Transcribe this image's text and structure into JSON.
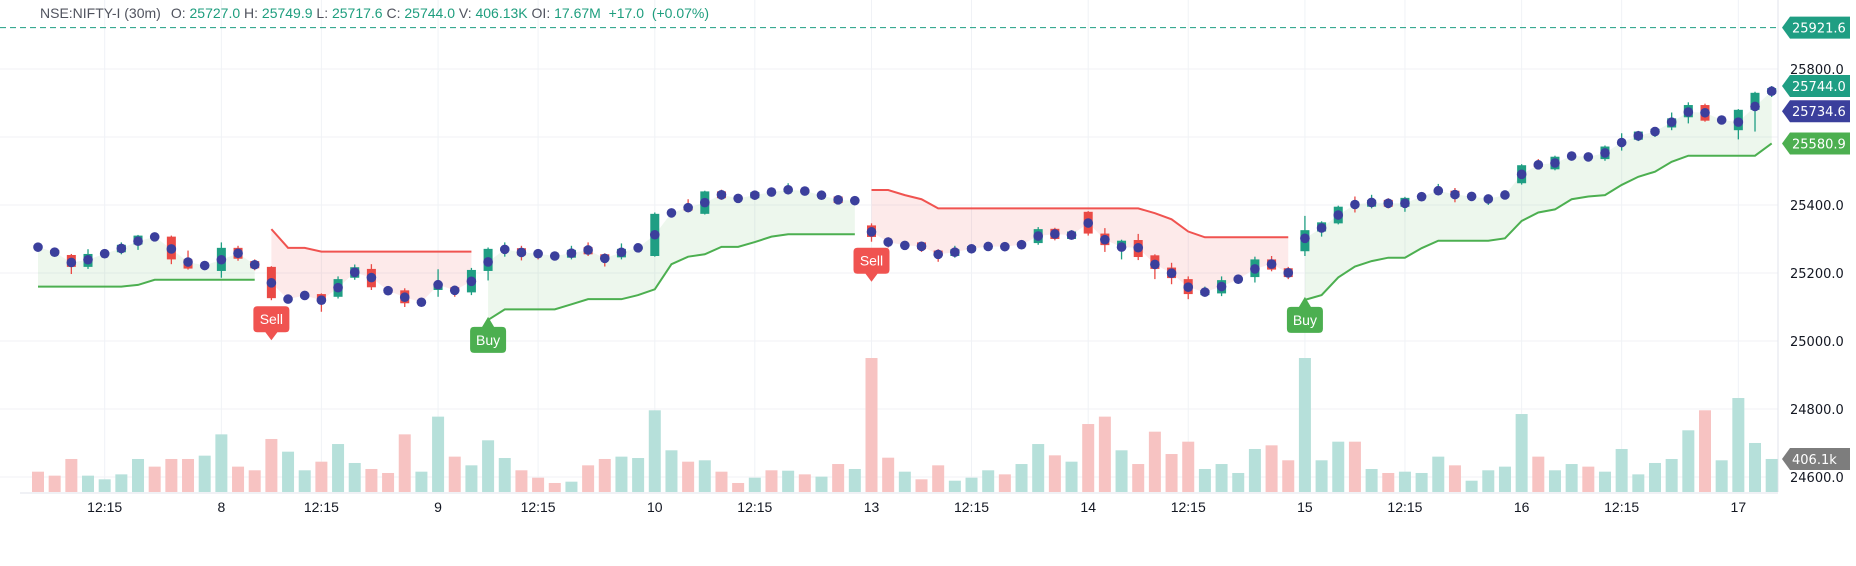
{
  "header": {
    "symbol": "NSE:NIFTY-I (30m)",
    "open_label": "O:",
    "open": "25727.0",
    "high_label": "H:",
    "high": "25749.9",
    "low_label": "L:",
    "low": "25717.6",
    "close_label": "C:",
    "close": "25744.0",
    "volume_label": "V:",
    "volume": "406.13K",
    "oi_label": "OI:",
    "oi": "17.67M",
    "change": "+17.0",
    "change_pct": "(+0.07%)"
  },
  "price_tags": [
    {
      "name": "dashed-level",
      "text": "25921.6",
      "value": 25921.6,
      "color": "#1f9e83"
    },
    {
      "name": "last-close",
      "text": "25744.0",
      "value": 25744.0,
      "color": "#1f9e83"
    },
    {
      "name": "ohlc4",
      "text": "25734.6",
      "value": 25734.6,
      "color": "#3b3f9c"
    },
    {
      "name": "trailing-stop",
      "text": "25580.9",
      "value": 25580.9,
      "color": "#4caf50"
    },
    {
      "name": "volume",
      "text": "406.1k",
      "volume": 406.13,
      "color": "#7d7d7d"
    }
  ],
  "chart_data": {
    "type": "candlestick",
    "interval": "30m",
    "colors": {
      "up": "#1f9e83",
      "down": "#ea4a45",
      "dot": "#3b3f9c",
      "trend_up": "#4caf50",
      "trend_down": "#f05350",
      "vol_up": "#b6e0da",
      "vol_down": "#f7c3c2",
      "grid": "#f0f2f6"
    },
    "y_ticks": [
      {
        "value": 25800,
        "label": "25800.0"
      },
      {
        "value": 25400,
        "label": "25400.0"
      },
      {
        "value": 25200,
        "label": "25200.0"
      },
      {
        "value": 25000,
        "label": "25000.0"
      },
      {
        "value": 24800,
        "label": "24800.0"
      },
      {
        "value": 24600,
        "label": "24600.0"
      }
    ],
    "grid_levels": [
      25800,
      25600,
      25400,
      25200,
      25000,
      24800,
      24600
    ],
    "x_ticks": [
      {
        "bar": 4,
        "label": "12:15"
      },
      {
        "bar": 11,
        "label": "8"
      },
      {
        "bar": 17,
        "label": "12:15"
      },
      {
        "bar": 24,
        "label": "9"
      },
      {
        "bar": 30,
        "label": "12:15"
      },
      {
        "bar": 37,
        "label": "10"
      },
      {
        "bar": 43,
        "label": "12:15"
      },
      {
        "bar": 50,
        "label": "13"
      },
      {
        "bar": 56,
        "label": "12:15"
      },
      {
        "bar": 63,
        "label": "14"
      },
      {
        "bar": 69,
        "label": "12:15"
      },
      {
        "bar": 76,
        "label": "15"
      },
      {
        "bar": 82,
        "label": "12:15"
      },
      {
        "bar": 89,
        "label": "16"
      },
      {
        "bar": 95,
        "label": "12:15"
      },
      {
        "bar": 102,
        "label": "17"
      }
    ],
    "ohlc": [
      [
        25280,
        25284,
        25268,
        25272
      ],
      [
        25268,
        25272,
        25250,
        25255
      ],
      [
        25253,
        25256,
        25197,
        25218
      ],
      [
        25218,
        25270,
        25212,
        25256
      ],
      [
        25255,
        25262,
        25250,
        25260
      ],
      [
        25261,
        25290,
        25255,
        25283
      ],
      [
        25284,
        25312,
        25268,
        25310
      ],
      [
        25310,
        25315,
        25298,
        25302
      ],
      [
        25307,
        25310,
        25226,
        25240
      ],
      [
        25240,
        25266,
        25210,
        25213
      ],
      [
        25220,
        25228,
        25215,
        25225
      ],
      [
        25206,
        25290,
        25186,
        25274
      ],
      [
        25274,
        25280,
        25236,
        25242
      ],
      [
        25235,
        25240,
        25208,
        25214
      ],
      [
        25218,
        25220,
        25120,
        25126
      ],
      [
        25122,
        25128,
        25118,
        25125
      ],
      [
        25128,
        25145,
        25125,
        25138
      ],
      [
        25138,
        25140,
        25086,
        25116
      ],
      [
        25130,
        25190,
        25125,
        25182
      ],
      [
        25186,
        25225,
        25180,
        25217
      ],
      [
        25212,
        25226,
        25150,
        25158
      ],
      [
        25155,
        25160,
        25135,
        25142
      ],
      [
        25149,
        25155,
        25100,
        25111
      ],
      [
        25112,
        25120,
        25108,
        25116
      ],
      [
        25150,
        25211,
        25130,
        25171
      ],
      [
        25158,
        25160,
        25130,
        25148
      ],
      [
        25143,
        25215,
        25135,
        25209
      ],
      [
        25206,
        25275,
        25178,
        25271
      ],
      [
        25265,
        25290,
        25248,
        25275
      ],
      [
        25273,
        25280,
        25237,
        25252
      ],
      [
        25262,
        25270,
        25240,
        25255
      ],
      [
        25252,
        25256,
        25244,
        25248
      ],
      [
        25245,
        25280,
        25240,
        25268
      ],
      [
        25276,
        25290,
        25250,
        25255
      ],
      [
        25255,
        25258,
        25219,
        25240
      ],
      [
        25246,
        25287,
        25240,
        25271
      ],
      [
        25270,
        25282,
        25266,
        25278
      ],
      [
        25250,
        25378,
        25248,
        25374
      ],
      [
        25372,
        25385,
        25370,
        25380
      ],
      [
        25390,
        25417,
        25378,
        25384
      ],
      [
        25374,
        25442,
        25372,
        25440
      ],
      [
        25440,
        25445,
        25415,
        25420
      ],
      [
        25424,
        25428,
        25408,
        25418
      ],
      [
        25420,
        25442,
        25416,
        25438
      ],
      [
        25440,
        25444,
        25432,
        25436
      ],
      [
        25438,
        25464,
        25432,
        25445
      ],
      [
        25446,
        25450,
        25432,
        25436
      ],
      [
        25426,
        25435,
        25422,
        25432
      ],
      [
        25425,
        25428,
        25402,
        25406
      ],
      [
        25410,
        25418,
        25408,
        25415
      ],
      [
        25340,
        25346,
        25292,
        25306
      ],
      [
        25296,
        25305,
        25275,
        25288
      ],
      [
        25280,
        25290,
        25270,
        25285
      ],
      [
        25290,
        25292,
        25262,
        25270
      ],
      [
        25266,
        25270,
        25233,
        25250
      ],
      [
        25250,
        25280,
        25245,
        25270
      ],
      [
        25264,
        25282,
        25260,
        25279
      ],
      [
        25276,
        25284,
        25272,
        25280
      ],
      [
        25280,
        25285,
        25270,
        25275
      ],
      [
        25278,
        25295,
        25270,
        25290
      ],
      [
        25288,
        25335,
        25283,
        25329
      ],
      [
        25330,
        25333,
        25296,
        25300
      ],
      [
        25300,
        25326,
        25298,
        25322
      ],
      [
        25380,
        25382,
        25310,
        25316
      ],
      [
        25316,
        25332,
        25262,
        25282
      ],
      [
        25272,
        25298,
        25240,
        25295
      ],
      [
        25297,
        25315,
        25238,
        25247
      ],
      [
        25252,
        25255,
        25182,
        25212
      ],
      [
        25216,
        25230,
        25167,
        25185
      ],
      [
        25182,
        25190,
        25123,
        25138
      ],
      [
        25135,
        25160,
        25130,
        25150
      ],
      [
        25140,
        25190,
        25132,
        25179
      ],
      [
        25178,
        25195,
        25168,
        25186
      ],
      [
        25188,
        25248,
        25172,
        25240
      ],
      [
        25240,
        25250,
        25205,
        25210
      ],
      [
        25214,
        25218,
        25182,
        25188
      ],
      [
        25264,
        25368,
        25250,
        25326
      ],
      [
        25322,
        25352,
        25307,
        25349
      ],
      [
        25346,
        25398,
        25343,
        25395
      ],
      [
        25405,
        25425,
        25378,
        25398
      ],
      [
        25395,
        25430,
        25390,
        25415
      ],
      [
        25415,
        25420,
        25390,
        25395
      ],
      [
        25395,
        25424,
        25380,
        25421
      ],
      [
        25422,
        25430,
        25418,
        25428
      ],
      [
        25436,
        25462,
        25428,
        25442
      ],
      [
        25442,
        25450,
        25408,
        25423
      ],
      [
        25424,
        25430,
        25420,
        25427
      ],
      [
        25420,
        25427,
        25400,
        25424
      ],
      [
        25428,
        25434,
        25424,
        25432
      ],
      [
        25464,
        25520,
        25460,
        25517
      ],
      [
        25518,
        25535,
        25508,
        25512
      ],
      [
        25505,
        25545,
        25502,
        25542
      ],
      [
        25542,
        25548,
        25540,
        25546
      ],
      [
        25544,
        25546,
        25536,
        25540
      ],
      [
        25535,
        25575,
        25530,
        25572
      ],
      [
        25578,
        25611,
        25560,
        25586
      ],
      [
        25592,
        25618,
        25588,
        25616
      ],
      [
        25614,
        25626,
        25600,
        25624
      ],
      [
        25628,
        25672,
        25620,
        25655
      ],
      [
        25658,
        25702,
        25640,
        25694
      ],
      [
        25694,
        25698,
        25645,
        25648
      ],
      [
        25648,
        25655,
        25645,
        25652
      ],
      [
        25620,
        25682,
        25593,
        25680
      ],
      [
        25680,
        25733,
        25616,
        25730
      ],
      [
        25727,
        25749.9,
        25717.6,
        25744
      ]
    ],
    "volume_k": [
      250,
      201,
      406,
      201,
      156,
      217,
      406,
      312,
      406,
      406,
      447,
      709,
      312,
      267,
      652,
      496,
      267,
      373,
      590,
      357,
      283,
      234,
      709,
      250,
      927,
      435,
      328,
      636,
      418,
      267,
      176,
      111,
      127,
      328,
      406,
      435,
      418,
      1005,
      513,
      373,
      390,
      250,
      111,
      176,
      267,
      262,
      217,
      189,
      344,
      283,
      1648,
      422,
      250,
      156,
      328,
      139,
      176,
      267,
      217,
      344,
      590,
      451,
      373,
      836,
      927,
      513,
      344,
      742,
      467,
      619,
      283,
      344,
      234,
      529,
      574,
      390,
      1648,
      390,
      619,
      619,
      283,
      234,
      250,
      234,
      435,
      328,
      139,
      267,
      312,
      959,
      435,
      267,
      344,
      312,
      250,
      529,
      217,
      357,
      406,
      759,
      1005,
      390,
      1156,
      603,
      406.13
    ],
    "trend_segments": [
      {
        "direction": "up",
        "start_bar": 0,
        "values": [
          25160,
          25160,
          25160,
          25160,
          25160,
          25160,
          25165,
          25180,
          25180,
          25180,
          25180,
          25180,
          25180,
          25180
        ]
      },
      {
        "direction": "down",
        "start_bar": 14,
        "values": [
          25329,
          25274,
          25274,
          25263,
          25263,
          25263,
          25263,
          25263,
          25263,
          25263,
          25263,
          25263,
          25263
        ]
      },
      {
        "direction": "up",
        "start_bar": 27,
        "values": [
          25062,
          25093,
          25093,
          25093,
          25093,
          25108,
          25123,
          25123,
          25123,
          25135,
          25152,
          25226,
          25248,
          25255,
          25277,
          25277,
          25291,
          25307,
          25314,
          25314,
          25314,
          25314,
          25314
        ]
      },
      {
        "direction": "down",
        "start_bar": 50,
        "values": [
          25444,
          25444,
          25429,
          25417,
          25390,
          25390,
          25390,
          25390,
          25390,
          25390,
          25390,
          25390,
          25390,
          25390,
          25390,
          25390,
          25390,
          25376,
          25358,
          25322,
          25305,
          25305,
          25305,
          25305,
          25305,
          25305
        ]
      },
      {
        "direction": "up",
        "start_bar": 76,
        "values": [
          25121,
          25135,
          25187,
          25219,
          25235,
          25245,
          25245,
          25273,
          25295,
          25295,
          25295,
          25295,
          25302,
          25353,
          25378,
          25387,
          25417,
          25425,
          25429,
          25459,
          25483,
          25498,
          25527,
          25545,
          25545,
          25545,
          25545,
          25545,
          25580.9
        ]
      }
    ],
    "signals": [
      {
        "bar": 14,
        "label": "Sell"
      },
      {
        "bar": 27,
        "label": "Buy"
      },
      {
        "bar": 50,
        "label": "Sell"
      },
      {
        "bar": 76,
        "label": "Buy"
      }
    ],
    "dashed_level": 25921.6
  }
}
